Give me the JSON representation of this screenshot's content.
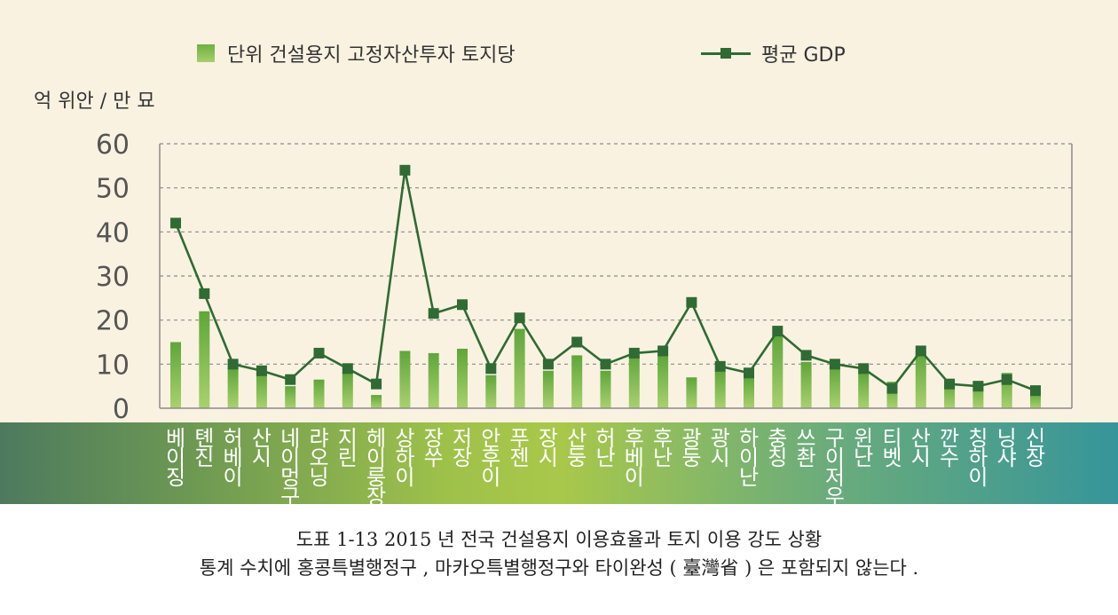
{
  "legend": {
    "bar_label": "단위 건설용지 고정자산투자 토지당",
    "line_label": "평균 GDP"
  },
  "y_unit_label": "억 위안 / 만 묘",
  "caption": {
    "line1": "도표 1-13 2015 년 전국 건설용지 이용효율과 토지 이용 강도 상황",
    "line2": "통계 수치에 홍콩특별행정구 , 마카오특별행정구와 타이완성 ( 臺灣省 ) 은 포함되지 않는다 ."
  },
  "colors": {
    "background": "#f9f2e1",
    "bar": "#7cb84a",
    "line": "#2f6b33",
    "grid": "#8a8a8a",
    "category_text": "#ffffff"
  },
  "chart_data": {
    "type": "bar",
    "categories": [
      "베이징",
      "톈진",
      "허베이",
      "산시",
      "네이멍구",
      "랴오닝",
      "지린",
      "헤이룽장",
      "상하이",
      "장쑤",
      "저장",
      "안후이",
      "푸젠",
      "장시",
      "산둥",
      "허난",
      "후베이",
      "후난",
      "광둥",
      "광시",
      "하이난",
      "충칭",
      "쓰촨",
      "구이저우",
      "윈난",
      "티벳",
      "산시",
      "깐수",
      "칭하이",
      "닝샤",
      "신장"
    ],
    "category_labels": [
      [
        "베",
        "이",
        "징"
      ],
      [
        "톈",
        "진"
      ],
      [
        "허",
        "베",
        "이"
      ],
      [
        "산",
        "시"
      ],
      [
        "네",
        "이",
        "멍",
        "구"
      ],
      [
        "랴",
        "오",
        "닝"
      ],
      [
        "지",
        "린"
      ],
      [
        "헤",
        "이",
        "룽",
        "장"
      ],
      [
        "상",
        "하",
        "이"
      ],
      [
        "장",
        "쑤"
      ],
      [
        "저",
        "장"
      ],
      [
        "안",
        "후",
        "이"
      ],
      [
        "푸",
        "젠"
      ],
      [
        "장",
        "시"
      ],
      [
        "산",
        "둥"
      ],
      [
        "허",
        "난"
      ],
      [
        "후",
        "베",
        "이"
      ],
      [
        "후",
        "난"
      ],
      [
        "광",
        "둥"
      ],
      [
        "광",
        "시"
      ],
      [
        "하",
        "이",
        "난"
      ],
      [
        "충",
        "칭"
      ],
      [
        "쓰",
        "촨"
      ],
      [
        "구",
        "이",
        "저",
        "우"
      ],
      [
        "윈",
        "난"
      ],
      [
        "티",
        "벳"
      ],
      [
        "산",
        "시"
      ],
      [
        "깐",
        "수"
      ],
      [
        "칭",
        "하",
        "이"
      ],
      [
        "닝",
        "샤"
      ],
      [
        "신",
        "장"
      ]
    ],
    "series": [
      {
        "name": "단위 건설용지 고정자산투자 토지당",
        "type": "bar",
        "values": [
          15,
          22,
          9,
          8,
          5,
          6.5,
          8,
          3,
          13,
          12.5,
          13.5,
          7.5,
          18,
          8.5,
          12,
          8.5,
          12,
          12,
          7,
          8.5,
          7,
          16.5,
          10.5,
          9.5,
          8,
          6,
          13,
          6,
          6,
          8,
          3.5
        ]
      },
      {
        "name": "평균 GDP",
        "type": "line",
        "values": [
          42,
          26,
          10,
          8.5,
          6.5,
          12.5,
          9,
          5.5,
          54,
          21.5,
          23.5,
          9,
          20.5,
          10,
          15,
          10,
          12.5,
          13,
          24,
          9.5,
          8,
          17.5,
          12,
          10,
          9,
          4.5,
          13,
          5.5,
          5,
          6.5,
          4
        ]
      }
    ],
    "ylim": [
      0,
      60
    ],
    "yticks": [
      "0",
      "10",
      "20",
      "30",
      "40",
      "50",
      "60"
    ],
    "grid": true,
    "legend_position": "top"
  }
}
